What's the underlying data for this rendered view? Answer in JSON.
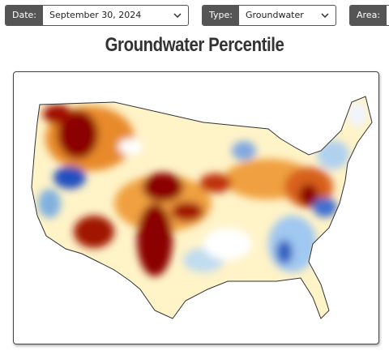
{
  "controls": [
    {
      "label": "Date:",
      "value": "September 30, 2024"
    },
    {
      "label": "Type:",
      "value": "Groundwater"
    },
    {
      "label": "Area:"
    }
  ],
  "title": "Groundwater Percentile"
}
